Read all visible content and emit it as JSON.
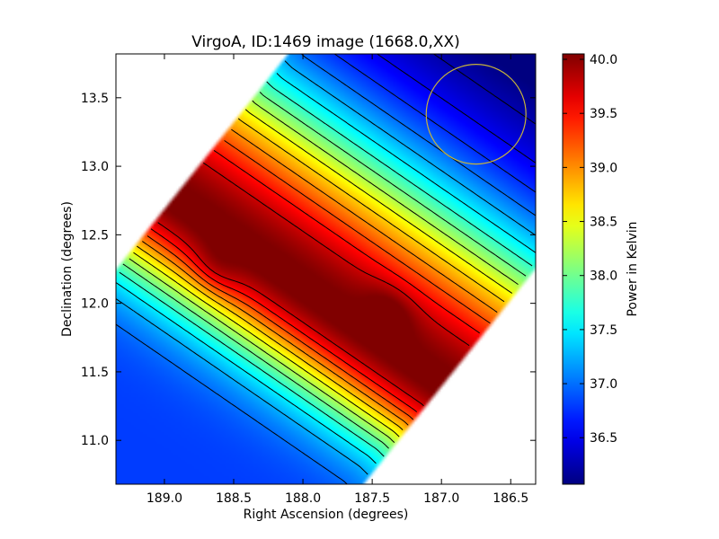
{
  "chart_data": {
    "type": "heatmap",
    "title": "VirgoA, ID:1469 image (1668.0,XX)",
    "xlabel": "Right Ascension (degrees)",
    "ylabel": "Declination (degrees)",
    "xlim": [
      189.35,
      186.32
    ],
    "ylim": [
      10.68,
      13.82
    ],
    "x_ticks": [
      189.0,
      188.5,
      188.0,
      187.5,
      187.0,
      186.5
    ],
    "x_tick_labels": [
      "189.0",
      "188.5",
      "188.0",
      "187.5",
      "187.0",
      "186.5"
    ],
    "y_ticks": [
      11.0,
      11.5,
      12.0,
      12.5,
      13.0,
      13.5
    ],
    "y_tick_labels": [
      "11.0",
      "11.5",
      "12.0",
      "12.5",
      "13.0",
      "13.5"
    ],
    "colorbar": {
      "label": "Power in Kelvin",
      "colormap": "jet",
      "range": [
        36.07,
        40.05
      ],
      "ticks": [
        36.5,
        37.0,
        37.5,
        38.0,
        38.5,
        39.0,
        39.5,
        40.0
      ],
      "tick_labels": [
        "36.5",
        "37.0",
        "37.5",
        "38.0",
        "38.5",
        "39.0",
        "39.5",
        "40.0"
      ]
    },
    "contours": {
      "color": "#000000",
      "levels": [
        36.25,
        36.5,
        36.75,
        37.0,
        37.25,
        37.5,
        37.75,
        38.0,
        38.25,
        38.5,
        38.75,
        39.0,
        39.25,
        39.5,
        39.75
      ]
    },
    "beam_circle": {
      "ra": 186.75,
      "dec": 13.38,
      "radius_deg": 0.36,
      "color": "#c8b43a"
    },
    "grid": false
  }
}
